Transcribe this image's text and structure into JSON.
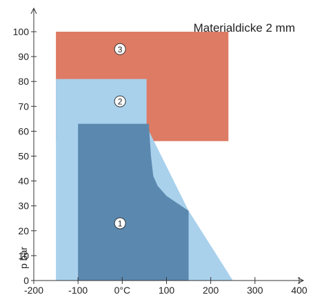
{
  "chart_data": {
    "type": "area",
    "title": "Materialdicke 2 mm",
    "xlabel": "",
    "ylabel": "p bar",
    "xlim": [
      -200,
      400
    ],
    "ylim": [
      0,
      100
    ],
    "x_ticks": [
      -200,
      -100,
      0,
      100,
      200,
      300,
      400
    ],
    "x_tick_labels": [
      "-200",
      "-100",
      "0°C",
      "100",
      "200",
      "300",
      "400"
    ],
    "y_ticks": [
      0,
      10,
      20,
      30,
      40,
      50,
      60,
      70,
      80,
      90,
      100
    ],
    "y_tick_labels": [
      "0",
      "10",
      "20",
      "30",
      "40",
      "50",
      "60",
      "70",
      "80",
      "90",
      "100"
    ],
    "grid": false,
    "series": [
      {
        "label": "3",
        "color": "#de7b64",
        "points": [
          [
            -150,
            56
          ],
          [
            240,
            56
          ],
          [
            240,
            100
          ],
          [
            -150,
            100
          ]
        ]
      },
      {
        "label": "2",
        "color": "#a9d1ec",
        "points": [
          [
            -150,
            0
          ],
          [
            250,
            0
          ],
          [
            150,
            28
          ],
          [
            55,
            62
          ],
          [
            55,
            81
          ],
          [
            -150,
            81
          ]
        ]
      },
      {
        "label": "1",
        "color": "#5b88af",
        "points": [
          [
            -100,
            0
          ],
          [
            150,
            0
          ],
          [
            150,
            28
          ],
          [
            100,
            34
          ],
          [
            80,
            38
          ],
          [
            70,
            42
          ],
          [
            65,
            50
          ],
          [
            60,
            63
          ],
          [
            -100,
            63
          ]
        ]
      }
    ],
    "markers": [
      {
        "text": "3",
        "x": -5,
        "y": 93
      },
      {
        "text": "2",
        "x": -5,
        "y": 72
      },
      {
        "text": "1",
        "x": -5,
        "y": 23
      }
    ],
    "colors": {
      "region_3": "#de7b64",
      "region_2": "#a9d1ec",
      "region_1": "#5b88af"
    }
  }
}
